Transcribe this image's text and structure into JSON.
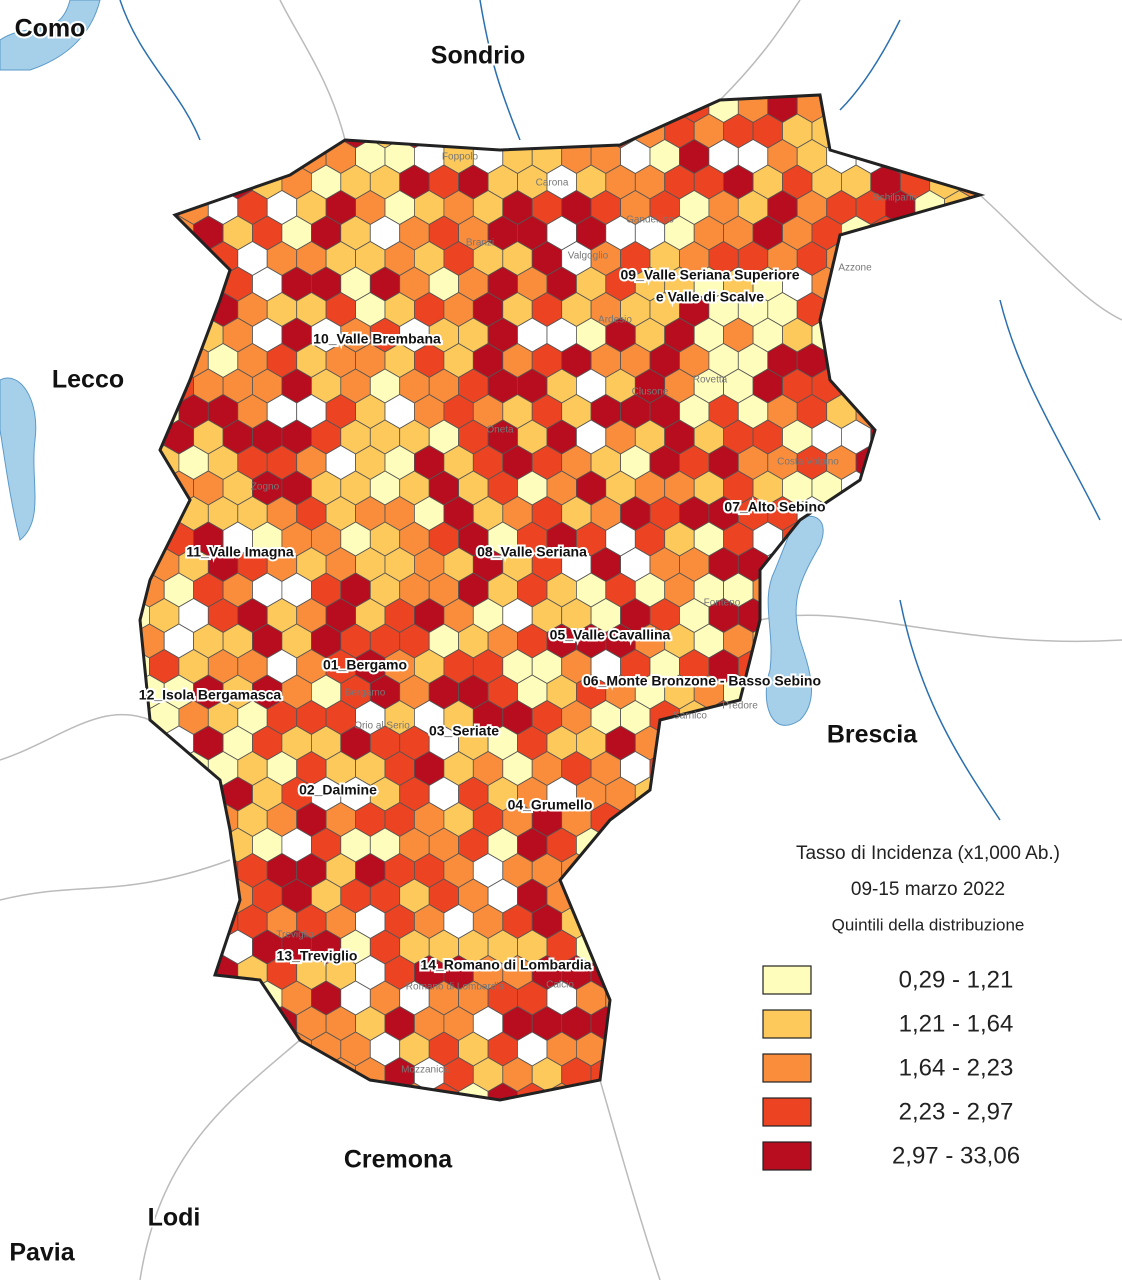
{
  "map": {
    "provinces": [
      "Como",
      "Sondrio",
      "Lecco",
      "Brescia",
      "Cremona",
      "Lodi",
      "Pavia"
    ],
    "districts": [
      "01_Bergamo",
      "02_Dalmine",
      "03_Seriate",
      "04_Grumello",
      "05_Valle Cavallina",
      "06_Monte Bronzone - Basso Sebino",
      "07_Alto Sebino",
      "08_Valle Seriana",
      "09_Valle Seriana Superiore",
      "e Valle di Scalve",
      "10_Valle Brembana",
      "11_Valle Imagna",
      "12_Isola Bergamasca",
      "13_Treviglio",
      "14_Romano di Lombardia"
    ],
    "municipalities": [
      "Foppolo",
      "Carona",
      "Branzi",
      "Valgoglio",
      "Gandellino",
      "Schilpario",
      "Azzone",
      "Ardesio",
      "Clusone",
      "Rovetta",
      "Oneta",
      "Zogno",
      "Costa Volpino",
      "Fonteno",
      "Bergamo",
      "Orio al Serio",
      "Treviglio",
      "Calcio",
      "Sarnico",
      "Predore",
      "Mozzanica",
      "Romano di Lombardia"
    ],
    "legend": {
      "title": "Tasso di Incidenza (x1,000 Ab.)",
      "period": "09-15 marzo 2022",
      "subtitle": "Quintili della distribuzione",
      "classes": [
        {
          "label": "0,29 - 1,21",
          "color": "#fefdbb"
        },
        {
          "label": "1,21 - 1,64",
          "color": "#fdc95b"
        },
        {
          "label": "1,64 - 2,23",
          "color": "#f98d3b"
        },
        {
          "label": "2,23 - 2,97",
          "color": "#ec4323"
        },
        {
          "label": "2,97 - 33,06",
          "color": "#b80d1e"
        }
      ]
    }
  }
}
